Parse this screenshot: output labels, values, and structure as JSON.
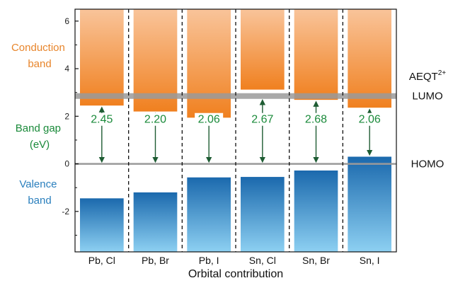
{
  "colors": {
    "conduction_top": "#f9c49a",
    "conduction_bottom": "#f0801f",
    "valence_top": "#1b69ad",
    "valence_bottom": "#8dd0f2",
    "gap_green": "#1a8a3a",
    "arrow_dark_green": "#1e5c33",
    "label_orange": "#e8852b",
    "label_blue": "#2a7fbd",
    "level_gray": "#9a9a9a"
  },
  "labels": {
    "conduction": [
      "Conduction",
      "band"
    ],
    "band_gap": [
      "Band gap",
      "(eV)"
    ],
    "valence": [
      "Valence",
      "band"
    ],
    "aeqt": "AEQT",
    "aeqt_sup": "2+",
    "lumo": "LUMO",
    "homo": "HOMO"
  },
  "chart_data": {
    "type": "bar",
    "title": "",
    "xlabel": "Orbital contribution",
    "ylabel": "",
    "ylim": [
      -3.7,
      6.5
    ],
    "yticks": [
      -2,
      0,
      2,
      4,
      6
    ],
    "ytick_labels": [
      "-2",
      "0",
      "2",
      "4",
      "6"
    ],
    "grid": false,
    "categories": [
      "Pb, Cl",
      "Pb, Br",
      "Pb, I",
      "Sn, Cl",
      "Sn, Br",
      "Sn, I"
    ],
    "series": [
      {
        "name": "Conduction band minimum",
        "values": [
          2.45,
          2.2,
          1.94,
          3.12,
          2.69,
          2.36
        ]
      },
      {
        "name": "Valence band maximum",
        "values": [
          -1.45,
          -1.2,
          -0.57,
          -0.55,
          -0.28,
          0.3
        ]
      }
    ],
    "band_gaps": [
      2.45,
      2.2,
      2.06,
      2.67,
      2.68,
      2.06
    ],
    "band_gap_labels": [
      "2.45",
      "2.20",
      "2.06",
      "2.67",
      "2.68",
      "2.06"
    ],
    "lumo": 2.85,
    "homo": 0
  }
}
